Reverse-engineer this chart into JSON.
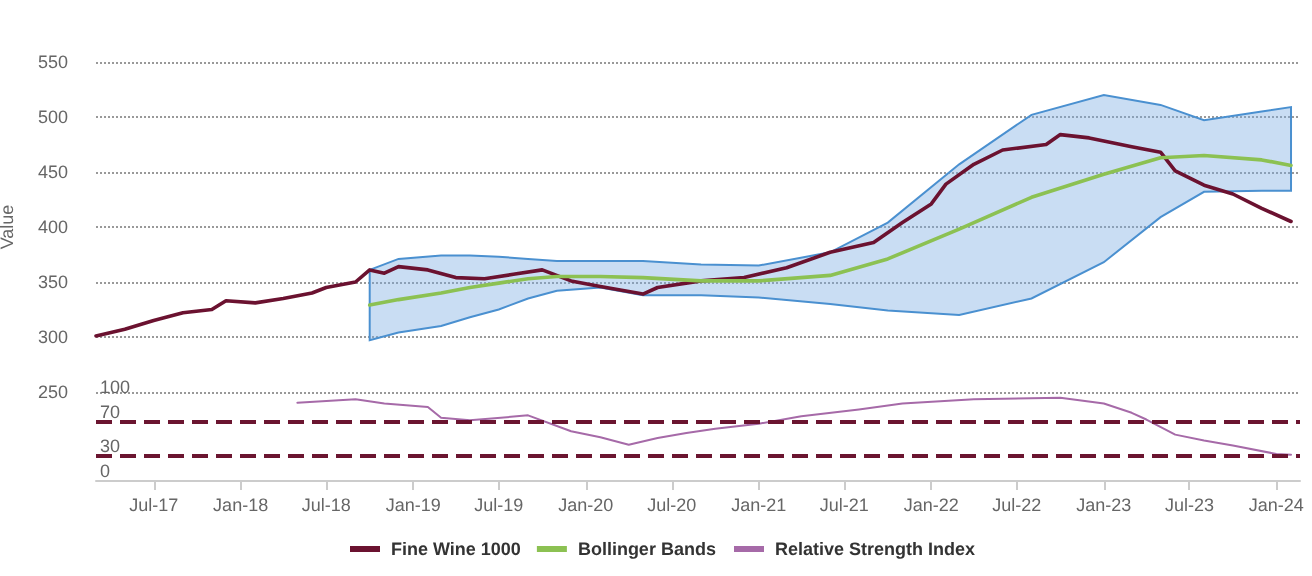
{
  "chart_data": [
    {
      "type": "line",
      "ylabel": "Value",
      "legend": "bottom",
      "grid": "y",
      "marker": "none",
      "line_style": "solid",
      "tick_labels": "y",
      "xlim": [
        "2017-03",
        "2024-02-20"
      ],
      "ylim": [
        250,
        550
      ],
      "yticks": [
        250,
        300,
        350,
        400,
        450,
        500,
        550
      ],
      "series": [
        {
          "name": "Fine Wine 1000",
          "color": "#6b1230",
          "x": [
            "2017-03",
            "2017-05",
            "2017-07",
            "2017-09",
            "2017-11",
            "2017-12",
            "2018-02",
            "2018-04",
            "2018-06",
            "2018-07",
            "2018-09",
            "2018-10",
            "2018-11",
            "2018-12",
            "2019-02",
            "2019-04",
            "2019-06",
            "2019-08",
            "2019-10",
            "2019-12",
            "2020-02",
            "2020-05",
            "2020-06",
            "2020-09",
            "2020-12",
            "2021-03",
            "2021-06",
            "2021-09",
            "2021-11",
            "2022-01",
            "2022-02",
            "2022-04",
            "2022-06",
            "2022-09",
            "2022-10",
            "2022-12",
            "2023-03",
            "2023-05",
            "2023-06",
            "2023-08",
            "2023-10",
            "2023-12",
            "2024-02"
          ],
          "values": [
            301,
            307,
            315,
            322,
            325,
            333,
            331,
            335,
            340,
            345,
            350,
            361,
            358,
            364,
            361,
            354,
            353,
            357,
            361,
            351,
            346,
            339,
            345,
            351,
            354,
            363,
            377,
            386,
            404,
            421,
            439,
            457,
            470,
            475,
            484,
            481,
            473,
            468,
            451,
            438,
            430,
            417,
            405
          ]
        },
        {
          "name": "Bollinger Bands",
          "color": "#8cc152",
          "x": [
            "2018-10",
            "2018-12",
            "2019-03",
            "2019-05",
            "2019-07",
            "2019-09",
            "2019-11",
            "2020-02",
            "2020-05",
            "2020-09",
            "2021-01",
            "2021-06",
            "2021-10",
            "2022-03",
            "2022-08",
            "2023-01",
            "2023-05",
            "2023-08",
            "2023-12",
            "2024-02"
          ],
          "values": [
            329,
            334,
            340,
            345,
            349,
            353,
            355,
            355,
            354,
            351,
            351,
            356,
            371,
            398,
            427,
            448,
            463,
            465,
            461,
            456
          ],
          "upper": [
            361,
            371,
            374,
            374,
            373,
            371,
            369,
            369,
            369,
            366,
            365,
            377,
            404,
            457,
            502,
            520,
            511,
            497,
            505,
            509
          ],
          "lower": [
            297,
            304,
            310,
            318,
            325,
            335,
            342,
            345,
            338,
            338,
            336,
            330,
            324,
            320,
            335,
            368,
            409,
            432,
            433,
            433
          ]
        }
      ]
    },
    {
      "type": "line",
      "legend": "bottom",
      "marker": "none",
      "line_style": "solid",
      "xlim": [
        "2017-03",
        "2024-02-20"
      ],
      "xticks": [
        {
          "value": "2017-07",
          "label": "Jul-17"
        },
        {
          "value": "2018-01",
          "label": "Jan-18"
        },
        {
          "value": "2018-07",
          "label": "Jul-18"
        },
        {
          "value": "2019-01",
          "label": "Jan-19"
        },
        {
          "value": "2019-07",
          "label": "Jul-19"
        },
        {
          "value": "2020-01",
          "label": "Jan-20"
        },
        {
          "value": "2020-07",
          "label": "Jul-20"
        },
        {
          "value": "2021-01",
          "label": "Jan-21"
        },
        {
          "value": "2021-07",
          "label": "Jul-21"
        },
        {
          "value": "2022-01",
          "label": "Jan-22"
        },
        {
          "value": "2022-07",
          "label": "Jul-22"
        },
        {
          "value": "2023-01",
          "label": "Jan-23"
        },
        {
          "value": "2023-07",
          "label": "Jul-23"
        },
        {
          "value": "2024-01",
          "label": "Jan-24"
        }
      ],
      "ylim": [
        0,
        100
      ],
      "yticks": [
        0,
        30,
        70,
        100
      ],
      "ref_lines": [
        {
          "axis": "y",
          "value": 70,
          "color": "#6b1530",
          "line_style": "dashed"
        },
        {
          "axis": "y",
          "value": 30,
          "color": "#6b1530",
          "line_style": "dashed"
        }
      ],
      "series": [
        {
          "name": "Relative Strength Index",
          "color": "#a66aa8",
          "x": [
            "2018-05",
            "2018-09",
            "2018-11",
            "2019-02",
            "2019-03",
            "2019-05",
            "2019-09",
            "2019-12",
            "2020-02",
            "2020-04",
            "2020-06",
            "2020-08",
            "2020-10",
            "2021-01",
            "2021-04",
            "2021-08",
            "2021-11",
            "2022-04",
            "2022-10",
            "2023-01",
            "2023-03",
            "2023-04",
            "2023-06",
            "2023-08",
            "2023-10",
            "2024-01",
            "2024-02"
          ],
          "values": [
            92,
            96,
            91,
            87,
            74,
            71,
            77,
            58,
            51,
            42,
            50,
            56,
            61,
            67,
            76,
            84,
            91,
            96,
            98,
            91,
            80,
            72,
            54,
            47,
            41,
            31,
            30
          ]
        }
      ]
    }
  ]
}
